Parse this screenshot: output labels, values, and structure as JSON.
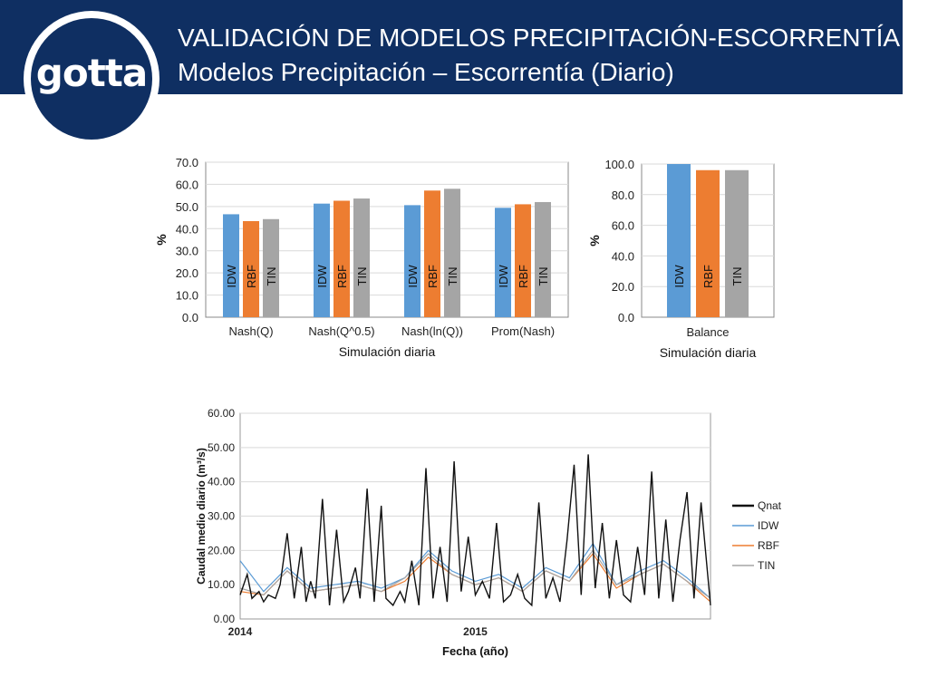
{
  "logo": {
    "text": "gotta"
  },
  "header": {
    "title": "VALIDACIÓN DE MODELOS PRECIPITACIÓN-ESCORRENTÍA",
    "subtitle": "Modelos Precipitación – Escorrentía (Diario)"
  },
  "colors": {
    "header": "#0f2f62",
    "idw": "#5b9bd5",
    "rbf": "#ed7d31",
    "tin": "#a5a5a5",
    "qnat": "#111111"
  },
  "chart_data": [
    {
      "type": "bar",
      "categories": [
        "Nash(Q)",
        "Nash(Q^0.5)",
        "Nash(ln(Q))",
        "Prom(Nash)"
      ],
      "series": [
        {
          "name": "IDW",
          "values": [
            46.5,
            51.3,
            50.6,
            49.4
          ]
        },
        {
          "name": "RBF",
          "values": [
            43.4,
            52.6,
            57.2,
            51.0
          ]
        },
        {
          "name": "TIN",
          "values": [
            44.3,
            53.6,
            58.0,
            52.0
          ]
        }
      ],
      "xlabel": "Simulación diaria",
      "ylabel": "%",
      "ylim": [
        0,
        70
      ],
      "yticks": [
        "0.0",
        "10.0",
        "20.0",
        "30.0",
        "40.0",
        "50.0",
        "60.0",
        "70.0"
      ],
      "grid": true
    },
    {
      "type": "bar",
      "categories": [
        "Balance"
      ],
      "series": [
        {
          "name": "IDW",
          "values": [
            100.0
          ]
        },
        {
          "name": "RBF",
          "values": [
            96.0
          ]
        },
        {
          "name": "TIN",
          "values": [
            96.0
          ]
        }
      ],
      "xlabel": "Simulación diaria",
      "ylabel": "%",
      "ylim": [
        0,
        100
      ],
      "yticks": [
        "0.0",
        "20.0",
        "40.0",
        "60.0",
        "80.0",
        "100.0"
      ],
      "grid": true
    },
    {
      "type": "line",
      "xlabel": "Fecha (año)",
      "ylabel": "Caudal medio diario (m³/s)",
      "ylim": [
        0,
        60
      ],
      "yticks": [
        "0.00",
        "10.00",
        "20.00",
        "30.00",
        "40.00",
        "50.00",
        "60.00"
      ],
      "xticks": [
        {
          "label": "2014",
          "x": 2014.0
        },
        {
          "label": "2015",
          "x": 2015.0
        }
      ],
      "xlim": [
        2014.0,
        2016.0
      ],
      "legend": "right",
      "grid": true,
      "series": [
        {
          "name": "Qnat",
          "x": [
            2014.0,
            2014.03,
            2014.05,
            2014.08,
            2014.1,
            2014.12,
            2014.15,
            2014.17,
            2014.2,
            2014.23,
            2014.26,
            2014.28,
            2014.3,
            2014.32,
            2014.35,
            2014.38,
            2014.41,
            2014.44,
            2014.46,
            2014.49,
            2014.51,
            2014.54,
            2014.57,
            2014.6,
            2014.62,
            2014.65,
            2014.68,
            2014.7,
            2014.73,
            2014.76,
            2014.79,
            2014.82,
            2014.85,
            2014.88,
            2014.91,
            2014.94,
            2014.97,
            2015.0,
            2015.03,
            2015.06,
            2015.09,
            2015.12,
            2015.15,
            2015.18,
            2015.21,
            2015.24,
            2015.27,
            2015.3,
            2015.33,
            2015.36,
            2015.39,
            2015.42,
            2015.45,
            2015.48,
            2015.51,
            2015.54,
            2015.57,
            2015.6,
            2015.63,
            2015.66,
            2015.69,
            2015.72,
            2015.75,
            2015.78,
            2015.81,
            2015.84,
            2015.87,
            2015.9,
            2015.93,
            2015.96,
            2016.0
          ],
          "values": [
            7,
            13,
            6,
            8,
            5,
            7,
            6,
            10,
            25,
            6,
            21,
            5,
            11,
            6,
            35,
            4,
            26,
            5,
            8,
            15,
            6,
            38,
            5,
            33,
            6,
            4,
            8,
            5,
            17,
            4,
            44,
            6,
            21,
            5,
            46,
            8,
            24,
            7,
            11,
            6,
            28,
            5,
            7,
            13,
            6,
            4,
            34,
            6,
            12,
            5,
            23,
            45,
            7,
            48,
            9,
            28,
            6,
            23,
            7,
            5,
            21,
            7,
            43,
            6,
            29,
            5,
            23,
            37,
            6,
            34,
            4
          ]
        },
        {
          "name": "IDW",
          "x": [
            2014.0,
            2014.1,
            2014.2,
            2014.3,
            2014.4,
            2014.5,
            2014.6,
            2014.7,
            2014.8,
            2014.9,
            2015.0,
            2015.1,
            2015.2,
            2015.3,
            2015.4,
            2015.5,
            2015.6,
            2015.7,
            2015.8,
            2015.9,
            2016.0
          ],
          "values": [
            17,
            8,
            15,
            9,
            10,
            11,
            9,
            12,
            20,
            14,
            11,
            13,
            9,
            15,
            12,
            22,
            10,
            14,
            17,
            12,
            6
          ]
        },
        {
          "name": "RBF",
          "x": [
            2014.0,
            2014.1,
            2014.2,
            2014.3,
            2014.4,
            2014.5,
            2014.6,
            2014.7,
            2014.8,
            2014.9,
            2015.0,
            2015.1,
            2015.2,
            2015.3,
            2015.4,
            2015.5,
            2015.6,
            2015.7,
            2015.8,
            2015.9,
            2016.0
          ],
          "values": [
            8,
            7,
            14,
            8,
            9,
            10,
            8,
            11,
            18,
            13,
            10,
            12,
            8,
            14,
            11,
            19,
            9,
            13,
            16,
            11,
            5
          ]
        },
        {
          "name": "TIN",
          "x": [
            2014.0,
            2014.1,
            2014.2,
            2014.3,
            2014.4,
            2014.5,
            2014.6,
            2014.7,
            2014.8,
            2014.9,
            2015.0,
            2015.1,
            2015.2,
            2015.3,
            2015.4,
            2015.5,
            2015.6,
            2015.7,
            2015.8,
            2015.9,
            2016.0
          ],
          "values": [
            9,
            7,
            14,
            8,
            9,
            10,
            8,
            12,
            19,
            13,
            10,
            12,
            8,
            14,
            11,
            20,
            10,
            13,
            16,
            11,
            6
          ]
        }
      ]
    }
  ]
}
